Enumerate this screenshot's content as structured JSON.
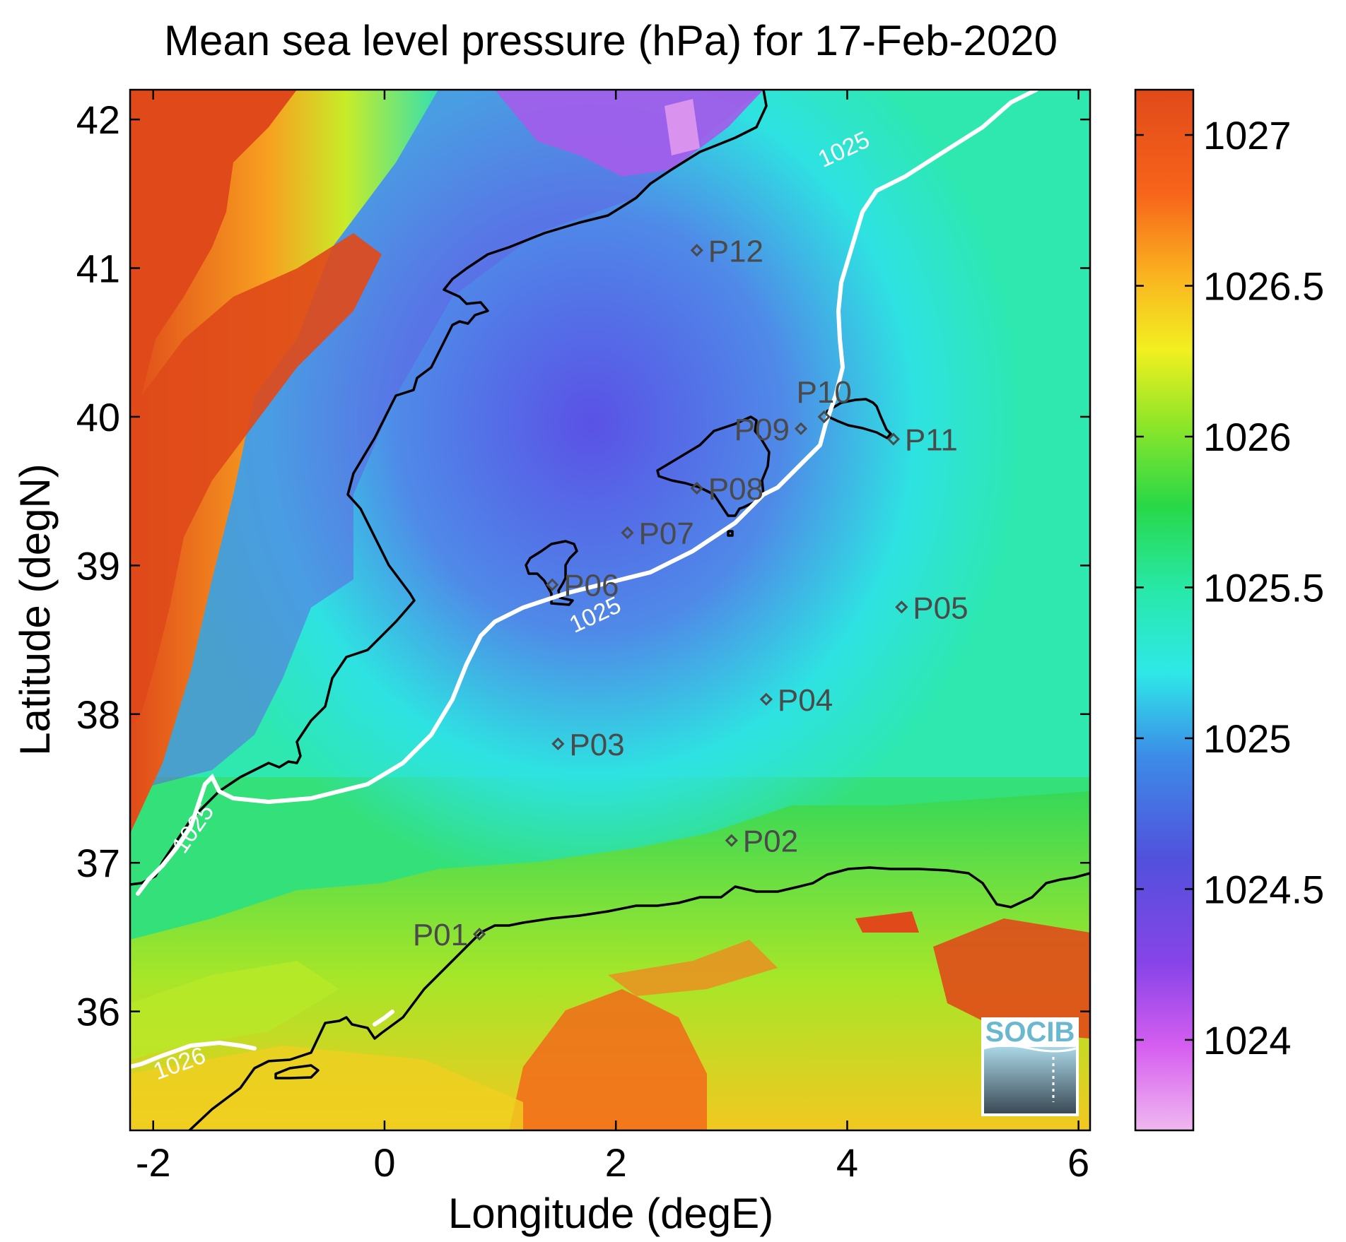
{
  "title": "Mean sea level pressure (hPa) for 17-Feb-2020",
  "xlabel": "Longitude (degE)",
  "ylabel": "Latitude (degN)",
  "logo_text": "SOCIB",
  "map": {
    "lon_range": [
      -2.2,
      6.1
    ],
    "lat_range": [
      35.2,
      42.2
    ],
    "x_ticks": [
      -2,
      0,
      2,
      4,
      6
    ],
    "y_ticks": [
      36,
      37,
      38,
      39,
      40,
      41,
      42
    ],
    "colorbar": {
      "range": [
        1023.7,
        1027.15
      ],
      "ticks": [
        1024,
        1024.5,
        1025,
        1025.5,
        1026,
        1026.5,
        1027
      ],
      "colormap": [
        "#f0b8f0",
        "#d65ef0",
        "#8844e8",
        "#5250dc",
        "#3c8ce8",
        "#2ee8e8",
        "#28e8a8",
        "#28d848",
        "#90e628",
        "#f2f020",
        "#fab420",
        "#f8641a",
        "#e04a1a"
      ]
    },
    "contour_labels": [
      {
        "text": "1025",
        "lon": 4.0,
        "lat": 41.75,
        "angle": -25
      },
      {
        "text": "1025",
        "lon": 1.85,
        "lat": 38.62,
        "angle": -25
      },
      {
        "text": "1025",
        "lon": -1.6,
        "lat": 37.2,
        "angle": -55
      },
      {
        "text": "1026",
        "lon": -1.75,
        "lat": 35.6,
        "angle": -20
      }
    ],
    "stations": [
      {
        "name": "P01",
        "lon": 0.82,
        "lat": 36.52,
        "side": "left"
      },
      {
        "name": "P02",
        "lon": 3.0,
        "lat": 37.15,
        "side": "right"
      },
      {
        "name": "P03",
        "lon": 1.5,
        "lat": 37.8,
        "side": "right"
      },
      {
        "name": "P04",
        "lon": 3.3,
        "lat": 38.1,
        "side": "right"
      },
      {
        "name": "P05",
        "lon": 4.47,
        "lat": 38.72,
        "side": "right"
      },
      {
        "name": "P06",
        "lon": 1.45,
        "lat": 38.87,
        "side": "right"
      },
      {
        "name": "P07",
        "lon": 2.1,
        "lat": 39.22,
        "side": "right"
      },
      {
        "name": "P08",
        "lon": 2.7,
        "lat": 39.52,
        "side": "right"
      },
      {
        "name": "P09",
        "lon": 3.6,
        "lat": 39.92,
        "side": "left"
      },
      {
        "name": "P10",
        "lon": 3.8,
        "lat": 40.0,
        "side": "above"
      },
      {
        "name": "P11",
        "lon": 4.4,
        "lat": 39.85,
        "side": "right"
      },
      {
        "name": "P12",
        "lon": 2.7,
        "lat": 41.12,
        "side": "right"
      }
    ]
  }
}
